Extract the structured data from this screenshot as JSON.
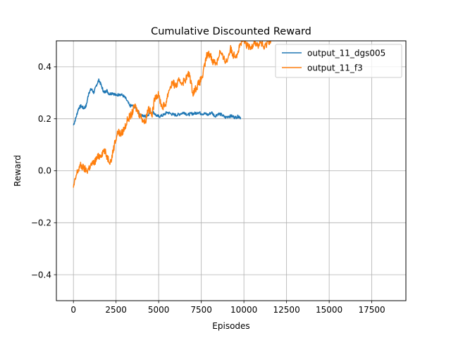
{
  "chart_data": {
    "type": "line",
    "title": "Cumulative Discounted Reward",
    "xlabel": "Episodes",
    "ylabel": "Reward",
    "xlim": [
      -1000,
      19500
    ],
    "ylim": [
      -0.5,
      0.5
    ],
    "grid": true,
    "legend_position": "upper-right",
    "xticks": [
      0,
      2500,
      5000,
      7500,
      10000,
      12500,
      15000,
      17500
    ],
    "xtick_labels": [
      "0",
      "2500",
      "5000",
      "7500",
      "10000",
      "12500",
      "15000",
      "17500"
    ],
    "yticks": [
      -0.4,
      -0.2,
      0.0,
      0.2,
      0.4
    ],
    "ytick_labels": [
      "−0.4",
      "−0.2",
      "0.0",
      "0.2",
      "0.4"
    ],
    "series": [
      {
        "name": "output_11_dgs005",
        "color": "#1f77b4",
        "x": [
          0,
          150,
          300,
          450,
          600,
          750,
          900,
          1050,
          1200,
          1350,
          1500,
          1650,
          1800,
          1950,
          2100,
          2300,
          2500,
          2700,
          2900,
          3100,
          3300,
          3500,
          3700,
          3900,
          4100,
          4300,
          4500,
          4700,
          4900,
          5100,
          5300,
          5500,
          5700,
          5900,
          6100,
          6300,
          6500,
          6700,
          6900,
          7100,
          7300,
          7500,
          7700,
          7900,
          8100,
          8300,
          8500,
          8700,
          8900,
          9100,
          9300,
          9500,
          9700,
          9800
        ],
        "y": [
          0.175,
          0.205,
          0.24,
          0.25,
          0.24,
          0.25,
          0.3,
          0.315,
          0.3,
          0.33,
          0.35,
          0.325,
          0.3,
          0.31,
          0.295,
          0.3,
          0.29,
          0.295,
          0.29,
          0.275,
          0.25,
          0.25,
          0.24,
          0.215,
          0.21,
          0.21,
          0.225,
          0.225,
          0.21,
          0.21,
          0.215,
          0.225,
          0.22,
          0.215,
          0.215,
          0.22,
          0.225,
          0.215,
          0.22,
          0.22,
          0.225,
          0.22,
          0.22,
          0.215,
          0.225,
          0.21,
          0.22,
          0.215,
          0.205,
          0.21,
          0.21,
          0.205,
          0.21,
          0.205
        ]
      },
      {
        "name": "output_11_f3",
        "color": "#ff7f0e",
        "x": [
          0,
          200,
          400,
          600,
          800,
          1000,
          1200,
          1400,
          1600,
          1800,
          2000,
          2200,
          2400,
          2600,
          2800,
          3000,
          3200,
          3400,
          3600,
          3800,
          4000,
          4200,
          4400,
          4600,
          4800,
          5000,
          5200,
          5400,
          5600,
          5800,
          6000,
          6200,
          6400,
          6600,
          6800,
          7000,
          7200,
          7400,
          7600,
          7800,
          8000,
          8200,
          8400,
          8600,
          8800,
          9000,
          9200,
          9400,
          9600,
          9800,
          10000,
          10200,
          10400,
          10600,
          10800,
          11000,
          11200,
          11400,
          11600
        ],
        "y": [
          -0.065,
          -0.01,
          0.02,
          0.01,
          0.0,
          0.02,
          0.03,
          0.05,
          0.06,
          0.08,
          0.05,
          0.035,
          0.1,
          0.15,
          0.14,
          0.165,
          0.2,
          0.215,
          0.25,
          0.225,
          0.205,
          0.185,
          0.245,
          0.21,
          0.29,
          0.29,
          0.245,
          0.255,
          0.31,
          0.34,
          0.325,
          0.345,
          0.34,
          0.355,
          0.375,
          0.3,
          0.32,
          0.34,
          0.37,
          0.44,
          0.45,
          0.42,
          0.415,
          0.46,
          0.43,
          0.42,
          0.47,
          0.445,
          0.45,
          0.49,
          0.5,
          0.48,
          0.47,
          0.5,
          0.48,
          0.495,
          0.47,
          0.5,
          0.5
        ]
      }
    ]
  }
}
